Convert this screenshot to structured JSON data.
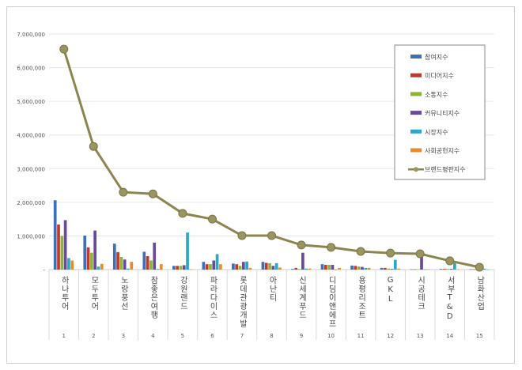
{
  "chart_data": {
    "type": "bar",
    "title": "",
    "xlabel": "",
    "ylabel": "",
    "ylim": [
      0,
      7000000
    ],
    "yticks": [
      "-",
      "1,000,000",
      "2,000,000",
      "3,000,000",
      "4,000,000",
      "5,000,000",
      "6,000,000",
      "7,000,000"
    ],
    "grid": true,
    "legend_position": "top-right",
    "categories": [
      "하나투어",
      "모두투어",
      "노랑풍선",
      "참좋은여행",
      "강원랜드",
      "파라다이스",
      "롯데관광개발",
      "아난티",
      "신세계푸드",
      "디딤이앤에프",
      "용평리조트",
      "GKL",
      "시공테크",
      "서부T&D",
      "남화산업"
    ],
    "ranks": [
      "1",
      "2",
      "3",
      "4",
      "5",
      "6",
      "7",
      "8",
      "9",
      "10",
      "11",
      "12",
      "13",
      "14",
      "15"
    ],
    "series": [
      {
        "name": "참여지수",
        "type": "bar",
        "color": "#3f6fb5",
        "values": [
          2060000,
          1010000,
          770000,
          530000,
          110000,
          230000,
          180000,
          230000,
          20000,
          160000,
          120000,
          50000,
          10000,
          20000,
          10000
        ]
      },
      {
        "name": "미디어지수",
        "type": "bar",
        "color": "#c0392b",
        "values": [
          1340000,
          660000,
          520000,
          400000,
          110000,
          160000,
          160000,
          200000,
          50000,
          140000,
          110000,
          50000,
          10000,
          20000,
          10000
        ]
      },
      {
        "name": "소통지수",
        "type": "bar",
        "color": "#8db33a",
        "values": [
          1000000,
          500000,
          375000,
          270000,
          110000,
          160000,
          110000,
          190000,
          20000,
          140000,
          90000,
          30000,
          10000,
          20000,
          10000
        ]
      },
      {
        "name": "커뮤니티지수",
        "type": "bar",
        "color": "#6a4a9c",
        "values": [
          1470000,
          1160000,
          300000,
          800000,
          130000,
          270000,
          230000,
          110000,
          500000,
          140000,
          80000,
          20000,
          420000,
          20000,
          10000
        ]
      },
      {
        "name": "시장지수",
        "type": "bar",
        "color": "#2aa8c4",
        "values": [
          340000,
          90000,
          30000,
          20000,
          1100000,
          460000,
          240000,
          190000,
          30000,
          0,
          50000,
          290000,
          10000,
          190000,
          30000
        ]
      },
      {
        "name": "사회공헌지수",
        "type": "bar",
        "color": "#e88b2e",
        "values": [
          270000,
          170000,
          230000,
          160000,
          10000,
          160000,
          50000,
          60000,
          30000,
          50000,
          50000,
          30000,
          10000,
          10000,
          0
        ]
      },
      {
        "name": "브랜드평판지수",
        "type": "line",
        "color": "#8c8550",
        "values": [
          6550000,
          3660000,
          2300000,
          2250000,
          1670000,
          1500000,
          1010000,
          1010000,
          730000,
          660000,
          540000,
          490000,
          470000,
          260000,
          70000
        ]
      }
    ]
  }
}
